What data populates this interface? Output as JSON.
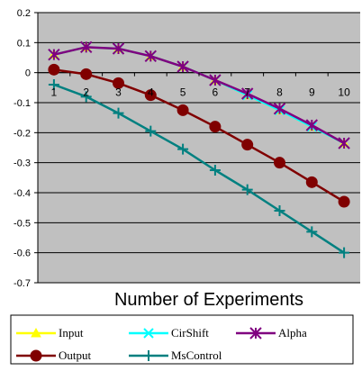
{
  "chart_data": {
    "type": "line",
    "title": "",
    "xlabel": "Number of Experiments",
    "ylabel": "",
    "x": [
      1,
      2,
      3,
      4,
      5,
      6,
      7,
      8,
      9,
      10
    ],
    "ylim": [
      -0.7,
      0.2
    ],
    "yticks": [
      0.2,
      0.1,
      0,
      -0.1,
      -0.2,
      -0.3,
      -0.4,
      -0.5,
      -0.6,
      -0.7
    ],
    "ytick_labels": [
      "0.2",
      "0.1",
      "0",
      "-0.1",
      "-0.2",
      "-0.3",
      "-0.4",
      "-0.5",
      "-0.6",
      "-0.7"
    ],
    "xtick_labels": [
      "1",
      "2",
      "3",
      "4",
      "5",
      "6",
      "7",
      "8",
      "9",
      "10"
    ],
    "grid": true,
    "plot_background": "#c0c0c0",
    "legend_position": "bottom",
    "series": [
      {
        "name": "Input",
        "color": "#ffff00",
        "marker": "triangle",
        "values": [
          0.06,
          0.085,
          0.08,
          0.055,
          0.02,
          -0.025,
          -0.075,
          -0.125,
          -0.18,
          -0.235
        ]
      },
      {
        "name": "CirShift",
        "color": "#00ffff",
        "marker": "x",
        "values": [
          0.06,
          0.085,
          0.08,
          0.055,
          0.02,
          -0.025,
          -0.075,
          -0.125,
          -0.18,
          -0.235
        ]
      },
      {
        "name": "Alpha",
        "color": "#800080",
        "marker": "asterisk",
        "values": [
          0.06,
          0.085,
          0.08,
          0.055,
          0.02,
          -0.025,
          -0.07,
          -0.12,
          -0.175,
          -0.235
        ]
      },
      {
        "name": "Output",
        "color": "#800000",
        "marker": "circle",
        "values": [
          0.01,
          -0.005,
          -0.035,
          -0.075,
          -0.125,
          -0.18,
          -0.24,
          -0.3,
          -0.365,
          -0.43
        ]
      },
      {
        "name": "MsControl",
        "color": "#008080",
        "marker": "plus",
        "values": [
          -0.04,
          -0.08,
          -0.135,
          -0.195,
          -0.255,
          -0.325,
          -0.39,
          -0.46,
          -0.53,
          -0.6
        ]
      }
    ]
  }
}
